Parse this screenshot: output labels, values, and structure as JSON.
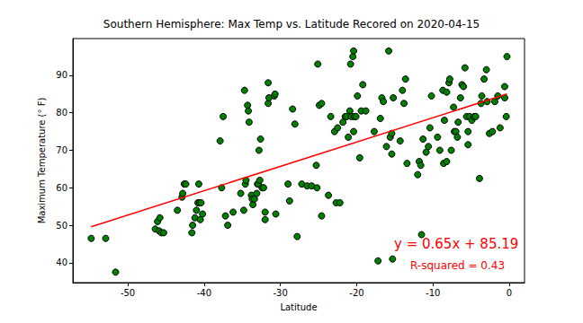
{
  "chart_data": {
    "type": "scatter",
    "title": "Southern Hemisphere: Max Temp vs. Latitude Recored on 2020-04-15",
    "x_label": "Latitude",
    "y_label": "Maximum Temperature (° F)",
    "xlim": [
      -57.2,
      2.0
    ],
    "xticks": [
      -50,
      -40,
      -30,
      -20,
      -10,
      0
    ],
    "ylim": [
      34.7,
      99.8
    ],
    "yticks": [
      40,
      50,
      60,
      70,
      80,
      90
    ],
    "grid": false,
    "annotations": [
      "y = 0.65x + 85.19",
      "R-squared = 0.43"
    ],
    "series": [
      {
        "type": "scatter",
        "color": "#008000",
        "marker": "o",
        "x": [
          -54.8,
          -52.9,
          -51.6,
          -46.4,
          -46.1,
          -45.8,
          -45.9,
          -45.6,
          -45.3,
          -43.5,
          -42.9,
          -42.6,
          -42.4,
          -42.8,
          -41.6,
          -41.5,
          -41.2,
          -41.0,
          -40.8,
          -40.6,
          -40.4,
          -40.7,
          -40.2,
          -40.5,
          -37.9,
          -37.7,
          -37.5,
          -37.2,
          -36.9,
          -36.2,
          -35.2,
          -34.8,
          -34.6,
          -34.5,
          -34.7,
          -34.3,
          -34.2,
          -34.1,
          -33.8,
          -33.6,
          -33.7,
          -33.4,
          -33.1,
          -33.0,
          -32.9,
          -32.7,
          -32.8,
          -32.6,
          -32.4,
          -32.2,
          -32.0,
          -32.0,
          -31.6,
          -31.5,
          -31.6,
          -30.8,
          -30.7,
          -30.6,
          -29.0,
          -28.8,
          -28.4,
          -28.1,
          -27.8,
          -27.2,
          -26.5,
          -25.9,
          -25.3,
          -25.2,
          -25.1,
          -24.9,
          -24.6,
          -24.6,
          -23.7,
          -23.4,
          -22.9,
          -22.5,
          -22.7,
          -22.2,
          -21.8,
          -21.5,
          -21.3,
          -21.1,
          -20.9,
          -20.7,
          -20.4,
          -20.8,
          -20.5,
          -20.4,
          -20.3,
          -20.1,
          -19.9,
          -19.6,
          -19.4,
          -19.2,
          -18.8,
          -17.7,
          -17.2,
          -16.9,
          -16.7,
          -16.5,
          -16.1,
          -15.8,
          -15.6,
          -15.4,
          -15.4,
          -15.2,
          -15.3,
          -14.3,
          -14.0,
          -13.8,
          -13.6,
          -13.4,
          -12.0,
          -11.8,
          -11.6,
          -11.5,
          -11.3,
          -10.9,
          -10.6,
          -10.4,
          -10.2,
          -9.4,
          -9.1,
          -8.7,
          -8.5,
          -8.6,
          -8.2,
          -8.2,
          -7.9,
          -7.8,
          -7.6,
          -7.3,
          -7.2,
          -7.0,
          -6.8,
          -6.7,
          -6.4,
          -6.2,
          -6.0,
          -5.8,
          -5.6,
          -5.4,
          -5.4,
          -5.2,
          -4.9,
          -4.6,
          -4.4,
          -3.9,
          -3.6,
          -3.7,
          -3.3,
          -3.0,
          -2.9,
          -2.6,
          -2.2,
          -1.9,
          -1.5,
          -1.2,
          -0.6,
          -0.6,
          -0.4,
          -0.3
        ],
        "values": [
          46.5,
          46.5,
          37.5,
          49,
          51,
          52,
          48.5,
          48,
          48,
          54,
          57.5,
          61,
          61,
          58.5,
          48,
          50,
          52,
          54,
          56,
          56,
          56,
          61,
          53,
          51.5,
          72.5,
          60,
          79,
          52.5,
          50,
          53.5,
          58.5,
          54,
          61,
          62,
          86,
          82,
          80.5,
          77.5,
          58,
          55.5,
          57,
          57,
          58.5,
          61,
          61,
          62,
          70,
          73,
          60,
          60,
          53.5,
          51.5,
          82.5,
          84,
          88,
          84.5,
          85,
          53,
          61,
          56.5,
          81,
          77,
          47,
          61,
          60.5,
          60.5,
          66,
          60,
          93,
          82,
          82.5,
          52.5,
          58,
          79,
          75,
          76,
          56,
          56,
          77.5,
          79,
          79,
          73.5,
          80.5,
          79,
          75,
          93,
          95,
          96.5,
          79,
          79,
          84.5,
          68,
          80.5,
          87.5,
          80.5,
          75,
          40.5,
          78.5,
          84,
          83,
          71,
          96.5,
          73.5,
          74.5,
          69,
          84,
          41,
          72.5,
          86,
          82.5,
          89,
          66.5,
          63.5,
          67,
          66,
          47.5,
          73,
          69.5,
          71,
          76,
          84.5,
          73.5,
          70,
          86,
          78,
          66.5,
          85.5,
          67,
          88,
          89,
          70,
          81.5,
          75,
          75,
          73.5,
          77.5,
          84,
          87.5,
          87,
          92,
          79,
          75,
          71.5,
          79,
          78,
          79,
          79,
          62.5,
          84.5,
          82.5,
          89,
          91.5,
          83,
          74.5,
          75,
          83,
          84.5,
          76,
          87,
          84,
          79,
          95
        ]
      },
      {
        "type": "line",
        "color": "#ff0000",
        "line_style": "solid",
        "x": [
          -54.8,
          -0.3
        ],
        "values": [
          49.6,
          85.0
        ]
      }
    ]
  }
}
